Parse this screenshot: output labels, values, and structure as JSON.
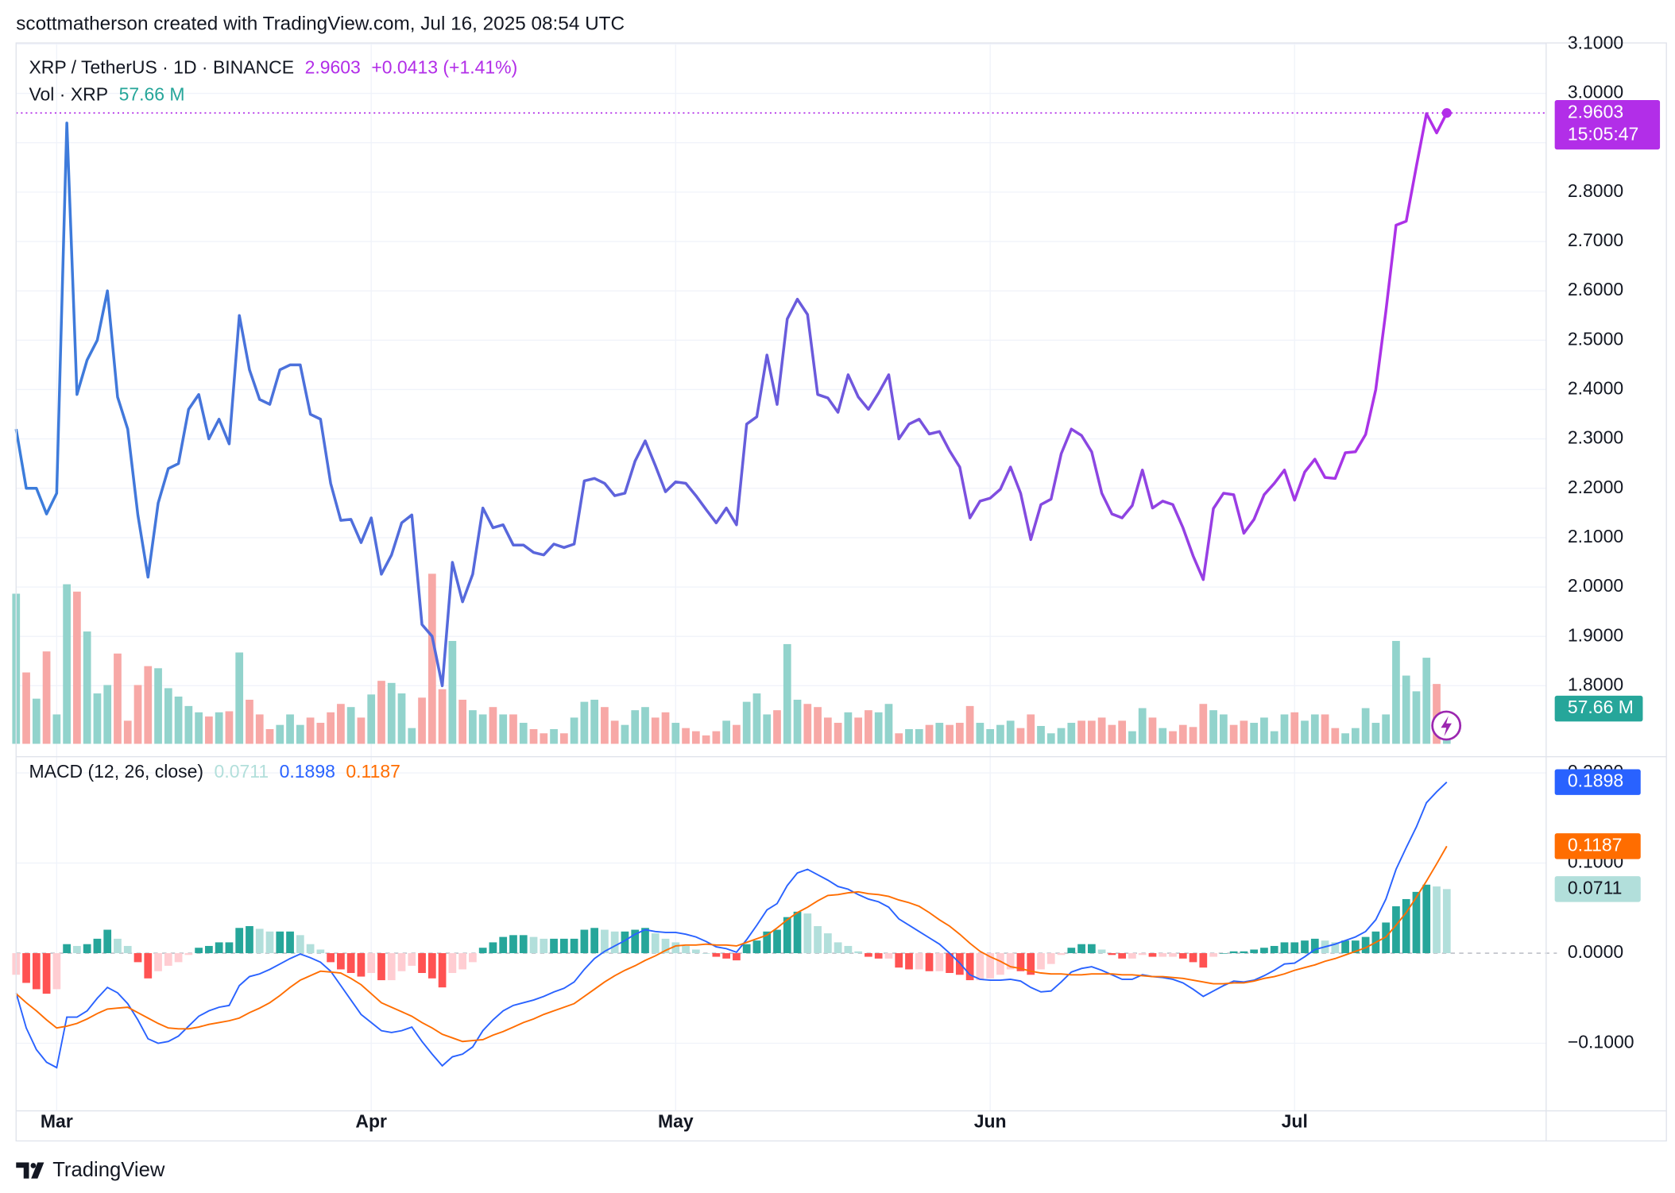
{
  "header": {
    "byline": "scottmatherson created with TradingView.com, Jul 16, 2025 08:54 UTC",
    "brand": "TradingView"
  },
  "chart_data": [
    {
      "type": "line",
      "title": "XRP / TetherUS · 1D · BINANCE",
      "change": "+0.0413 (+1.41%)",
      "countdown": "15:05:47",
      "categories": [
        null,
        null,
        null,
        null,
        "Mar",
        null,
        null,
        null,
        null,
        null,
        null,
        null,
        null,
        null,
        null,
        null,
        null,
        null,
        null,
        null,
        null,
        null,
        null,
        null,
        null,
        null,
        null,
        null,
        null,
        null,
        null,
        null,
        null,
        null,
        null,
        "Apr",
        null,
        null,
        null,
        null,
        null,
        null,
        null,
        null,
        null,
        null,
        null,
        null,
        null,
        null,
        null,
        null,
        null,
        null,
        null,
        null,
        null,
        null,
        null,
        null,
        null,
        null,
        null,
        null,
        null,
        "May",
        null,
        null,
        null,
        null,
        null,
        null,
        null,
        null,
        null,
        null,
        null,
        null,
        null,
        null,
        null,
        null,
        null,
        null,
        null,
        null,
        null,
        null,
        null,
        null,
        null,
        null,
        null,
        null,
        null,
        null,
        "Jun",
        null,
        null,
        null,
        null,
        null,
        null,
        null,
        null,
        null,
        null,
        null,
        null,
        null,
        null,
        null,
        null,
        null,
        null,
        null,
        null,
        null,
        null,
        null,
        null,
        null,
        null,
        null,
        null,
        null,
        "Jul",
        null,
        null,
        null,
        null,
        null,
        null,
        null,
        null,
        null,
        null,
        null,
        null,
        null,
        null,
        null
      ],
      "series": [
        {
          "name": "XRP / TetherUS",
          "colors": [
            "#3b7ddb",
            "#6a5bdc",
            "#b22ee8"
          ],
          "last_color": "#b22ee8",
          "values": [
            2.32,
            2.2,
            2.2,
            2.148,
            2.19,
            2.94,
            2.39,
            2.46,
            2.5,
            2.6,
            2.385,
            2.32,
            2.146,
            2.02,
            2.17,
            2.24,
            2.25,
            2.36,
            2.39,
            2.3,
            2.34,
            2.29,
            2.55,
            2.44,
            2.38,
            2.37,
            2.44,
            2.45,
            2.45,
            2.35,
            2.34,
            2.21,
            2.135,
            2.137,
            2.09,
            2.14,
            2.026,
            2.065,
            2.13,
            2.146,
            1.924,
            1.9,
            1.8,
            2.05,
            1.97,
            2.026,
            2.16,
            2.12,
            2.126,
            2.085,
            2.085,
            2.07,
            2.065,
            2.087,
            2.08,
            2.087,
            2.215,
            2.22,
            2.21,
            2.185,
            2.19,
            2.255,
            2.296,
            2.246,
            2.193,
            2.213,
            2.21,
            2.185,
            2.157,
            2.13,
            2.16,
            2.126,
            2.33,
            2.345,
            2.47,
            2.37,
            2.543,
            2.583,
            2.552,
            2.39,
            2.383,
            2.354,
            2.43,
            2.385,
            2.36,
            2.393,
            2.43,
            2.3,
            2.33,
            2.34,
            2.31,
            2.315,
            2.276,
            2.243,
            2.14,
            2.174,
            2.18,
            2.198,
            2.243,
            2.19,
            2.096,
            2.167,
            2.178,
            2.27,
            2.32,
            2.307,
            2.274,
            2.19,
            2.148,
            2.14,
            2.165,
            2.237,
            2.16,
            2.174,
            2.167,
            2.12,
            2.063,
            2.015,
            2.159,
            2.19,
            2.187,
            2.109,
            2.137,
            2.187,
            2.21,
            2.237,
            2.176,
            2.233,
            2.259,
            2.222,
            2.22,
            2.272,
            2.274,
            2.309,
            2.4,
            2.559,
            2.733,
            2.741,
            2.852,
            2.959,
            2.92,
            2.9603
          ]
        }
      ],
      "volume": {
        "name": "Vol · XRP",
        "up_color": "#92d3cc",
        "down_color": "#f7a8a6",
        "label_color": "#26a69a",
        "values": [
          429,
          204,
          129,
          264,
          84,
          456,
          435,
          321,
          144,
          168,
          258,
          66,
          168,
          222,
          216,
          159,
          135,
          108,
          90,
          78,
          90,
          93,
          261,
          126,
          84,
          42,
          54,
          84,
          54,
          75,
          60,
          90,
          114,
          105,
          75,
          141,
          180,
          174,
          144,
          45,
          132,
          486,
          156,
          294,
          126,
          96,
          84,
          105,
          84,
          84,
          60,
          42,
          30,
          42,
          30,
          75,
          120,
          126,
          105,
          66,
          54,
          96,
          105,
          75,
          90,
          60,
          45,
          36,
          24,
          36,
          66,
          54,
          120,
          144,
          84,
          96,
          285,
          126,
          114,
          105,
          75,
          60,
          90,
          75,
          96,
          90,
          114,
          30,
          42,
          42,
          54,
          60,
          54,
          60,
          108,
          60,
          42,
          54,
          66,
          45,
          84,
          51,
          30,
          45,
          60,
          66,
          66,
          75,
          54,
          66,
          36,
          102,
          75,
          45,
          36,
          54,
          48,
          114,
          96,
          84,
          54,
          66,
          60,
          75,
          36,
          84,
          90,
          66,
          84,
          84,
          45,
          30,
          45,
          102,
          60,
          84,
          294,
          195,
          150,
          246,
          171,
          57.66
        ],
        "value_labels": {
          "141": "57.66 M"
        }
      },
      "vlim": [
        0,
        2000
      ],
      "ylim": [
        1.678,
        3.1
      ],
      "yticks": [
        {
          "value": 1.8,
          "label": "1.8000"
        },
        {
          "value": 1.9,
          "label": "1.9000"
        },
        {
          "value": 2.0,
          "label": "2.0000"
        },
        {
          "value": 2.1,
          "label": "2.1000"
        },
        {
          "value": 2.2,
          "label": "2.2000"
        },
        {
          "value": 2.3,
          "label": "2.3000"
        },
        {
          "value": 2.4,
          "label": "2.4000"
        },
        {
          "value": 2.5,
          "label": "2.5000"
        },
        {
          "value": 2.6,
          "label": "2.6000"
        },
        {
          "value": 2.7,
          "label": "2.7000"
        },
        {
          "value": 2.8,
          "label": "2.8000"
        },
        {
          "value": 2.9,
          "label": "2.9000"
        },
        {
          "value": 3.0,
          "label": "3.0000"
        },
        {
          "value": 3.1,
          "label": "3.1000"
        }
      ],
      "grid": true
    },
    {
      "type": "macd",
      "title": "MACD (12, 26, close)",
      "series": [
        {
          "color": "#b2dfdb",
          "colors": [
            "#26a69a",
            "#b2dfdb",
            "#ff5252",
            "#ffcdd2"
          ],
          "values": [
            -0.024,
            -0.033,
            -0.04,
            -0.045,
            -0.04,
            0.01,
            0.008,
            0.01,
            0.016,
            0.026,
            0.016,
            0.008,
            -0.01,
            -0.028,
            -0.02,
            -0.014,
            -0.01,
            -0.002,
            0.006,
            0.008,
            0.012,
            0.012,
            0.028,
            0.03,
            0.027,
            0.024,
            0.024,
            0.024,
            0.02,
            0.01,
            0.004,
            -0.01,
            -0.018,
            -0.022,
            -0.026,
            -0.022,
            -0.03,
            -0.03,
            -0.02,
            -0.014,
            -0.022,
            -0.028,
            -0.038,
            -0.022,
            -0.018,
            -0.01,
            0.006,
            0.012,
            0.018,
            0.02,
            0.02,
            0.018,
            0.016,
            0.016,
            0.016,
            0.016,
            0.026,
            0.028,
            0.026,
            0.024,
            0.024,
            0.026,
            0.028,
            0.022,
            0.016,
            0.012,
            0.008,
            0.004,
            0,
            -0.004,
            -0.006,
            -0.008,
            0.01,
            0.014,
            0.024,
            0.026,
            0.04,
            0.046,
            0.044,
            0.03,
            0.022,
            0.012,
            0.008,
            0.002,
            -0.004,
            -0.006,
            -0.006,
            -0.016,
            -0.018,
            -0.018,
            -0.02,
            -0.02,
            -0.022,
            -0.024,
            -0.03,
            -0.03,
            -0.028,
            -0.024,
            -0.018,
            -0.02,
            -0.024,
            -0.018,
            -0.012,
            -0.002,
            0.006,
            0.01,
            0.01,
            0.004,
            -0.002,
            -0.006,
            -0.006,
            -0.002,
            -0.004,
            -0.004,
            -0.004,
            -0.006,
            -0.01,
            -0.016,
            -0.004,
            0,
            0.002,
            0.002,
            0.004,
            0.006,
            0.008,
            0.012,
            0.012,
            0.014,
            0.016,
            0.014,
            0.012,
            0.014,
            0.014,
            0.018,
            0.024,
            0.034,
            0.052,
            0.06,
            0.068,
            0.076,
            0.074,
            0.0711
          ]
        },
        {
          "color": "#2962ff",
          "values": [
            -0.044,
            -0.083,
            -0.107,
            -0.121,
            -0.127,
            -0.071,
            -0.071,
            -0.064,
            -0.05,
            -0.038,
            -0.044,
            -0.056,
            -0.074,
            -0.095,
            -0.1,
            -0.098,
            -0.092,
            -0.081,
            -0.07,
            -0.064,
            -0.06,
            -0.058,
            -0.036,
            -0.026,
            -0.023,
            -0.018,
            -0.012,
            -0.006,
            -0.001,
            -0.005,
            -0.01,
            -0.02,
            -0.036,
            -0.052,
            -0.068,
            -0.077,
            -0.086,
            -0.088,
            -0.086,
            -0.082,
            -0.098,
            -0.112,
            -0.125,
            -0.115,
            -0.112,
            -0.104,
            -0.086,
            -0.074,
            -0.064,
            -0.058,
            -0.055,
            -0.052,
            -0.048,
            -0.043,
            -0.039,
            -0.032,
            -0.018,
            -0.006,
            0.002,
            0.008,
            0.014,
            0.021,
            0.026,
            0.024,
            0.023,
            0.023,
            0.021,
            0.018,
            0.013,
            0.007,
            0.005,
            0.001,
            0.015,
            0.031,
            0.048,
            0.055,
            0.075,
            0.089,
            0.093,
            0.087,
            0.081,
            0.074,
            0.071,
            0.065,
            0.06,
            0.057,
            0.051,
            0.038,
            0.031,
            0.024,
            0.017,
            0.01,
            0,
            -0.011,
            -0.024,
            -0.029,
            -0.03,
            -0.03,
            -0.029,
            -0.031,
            -0.038,
            -0.043,
            -0.042,
            -0.032,
            -0.021,
            -0.017,
            -0.015,
            -0.019,
            -0.024,
            -0.029,
            -0.029,
            -0.024,
            -0.026,
            -0.027,
            -0.029,
            -0.033,
            -0.04,
            -0.048,
            -0.042,
            -0.036,
            -0.031,
            -0.032,
            -0.03,
            -0.025,
            -0.019,
            -0.012,
            -0.011,
            -0.004,
            0.004,
            0.007,
            0.01,
            0.014,
            0.018,
            0.024,
            0.037,
            0.06,
            0.093,
            0.117,
            0.14,
            0.167,
            0.179,
            0.1898
          ]
        },
        {
          "color": "#ff6d00",
          "values": [
            -0.045,
            -0.055,
            -0.064,
            -0.074,
            -0.083,
            -0.081,
            -0.078,
            -0.073,
            -0.067,
            -0.062,
            -0.061,
            -0.06,
            -0.066,
            -0.072,
            -0.078,
            -0.083,
            -0.084,
            -0.084,
            -0.082,
            -0.079,
            -0.077,
            -0.075,
            -0.072,
            -0.066,
            -0.061,
            -0.055,
            -0.047,
            -0.038,
            -0.03,
            -0.025,
            -0.02,
            -0.021,
            -0.022,
            -0.028,
            -0.035,
            -0.045,
            -0.055,
            -0.06,
            -0.065,
            -0.07,
            -0.077,
            -0.083,
            -0.09,
            -0.094,
            -0.098,
            -0.097,
            -0.096,
            -0.091,
            -0.087,
            -0.082,
            -0.077,
            -0.073,
            -0.068,
            -0.064,
            -0.06,
            -0.056,
            -0.048,
            -0.04,
            -0.032,
            -0.025,
            -0.019,
            -0.014,
            -0.008,
            -0.003,
            0.003,
            0.008,
            0.009,
            0.009,
            0.01,
            0.009,
            0.009,
            0.008,
            0.012,
            0.016,
            0.02,
            0.028,
            0.037,
            0.045,
            0.051,
            0.058,
            0.064,
            0.065,
            0.067,
            0.068,
            0.066,
            0.065,
            0.063,
            0.059,
            0.056,
            0.052,
            0.045,
            0.037,
            0.03,
            0.021,
            0.011,
            0.002,
            -0.004,
            -0.009,
            -0.015,
            -0.017,
            -0.02,
            -0.022,
            -0.023,
            -0.023,
            -0.024,
            -0.024,
            -0.023,
            -0.023,
            -0.023,
            -0.024,
            -0.024,
            -0.025,
            -0.026,
            -0.026,
            -0.027,
            -0.028,
            -0.03,
            -0.032,
            -0.034,
            -0.034,
            -0.033,
            -0.033,
            -0.031,
            -0.028,
            -0.026,
            -0.023,
            -0.019,
            -0.016,
            -0.013,
            -0.009,
            -0.006,
            -0.002,
            0.002,
            0.006,
            0.012,
            0.018,
            0.031,
            0.045,
            0.062,
            0.08,
            0.099,
            0.1187
          ]
        }
      ],
      "ylim": [
        -0.175,
        0.218
      ],
      "yticks": [
        {
          "value": -0.1,
          "label": "−0.1000"
        },
        {
          "value": 0,
          "label": "0.0000"
        },
        {
          "value": 0.1,
          "label": "0.1000"
        },
        {
          "value": 0.2,
          "label": "0.2000"
        }
      ],
      "grid": true
    }
  ]
}
